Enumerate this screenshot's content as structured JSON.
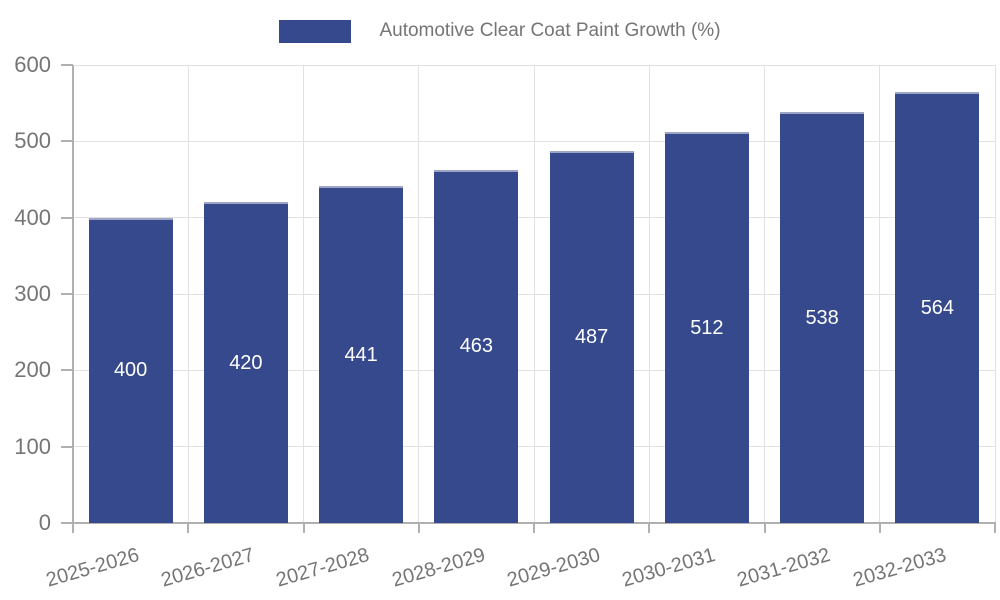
{
  "chart_data": {
    "type": "bar",
    "title": "Automotive Clear Coat Paint Growth (%)",
    "legend_entries": [
      "Automotive Clear Coat Paint Growth (%)"
    ],
    "legend_position": "top-center",
    "categories": [
      "2025-2026",
      "2026-2027",
      "2027-2028",
      "2028-2029",
      "2029-2030",
      "2030-2031",
      "2031-2032",
      "2032-2033"
    ],
    "values": [
      400,
      420,
      441,
      463,
      487,
      512,
      538,
      564
    ],
    "value_labels": [
      "400",
      "420",
      "441",
      "463",
      "487",
      "512",
      "538",
      "564"
    ],
    "xlabel": "",
    "ylabel": "",
    "ylim": [
      0,
      600
    ],
    "yticks": [
      0,
      100,
      200,
      300,
      400,
      500,
      600
    ],
    "grid": true,
    "colors": {
      "bar": "#35498c",
      "bar_edge": "#9da5c6",
      "grid": "#e2e2e2",
      "axis": "#b0b0b0",
      "tick_text": "#757575",
      "value_text": "#ffffff",
      "background": "#ffffff"
    }
  }
}
